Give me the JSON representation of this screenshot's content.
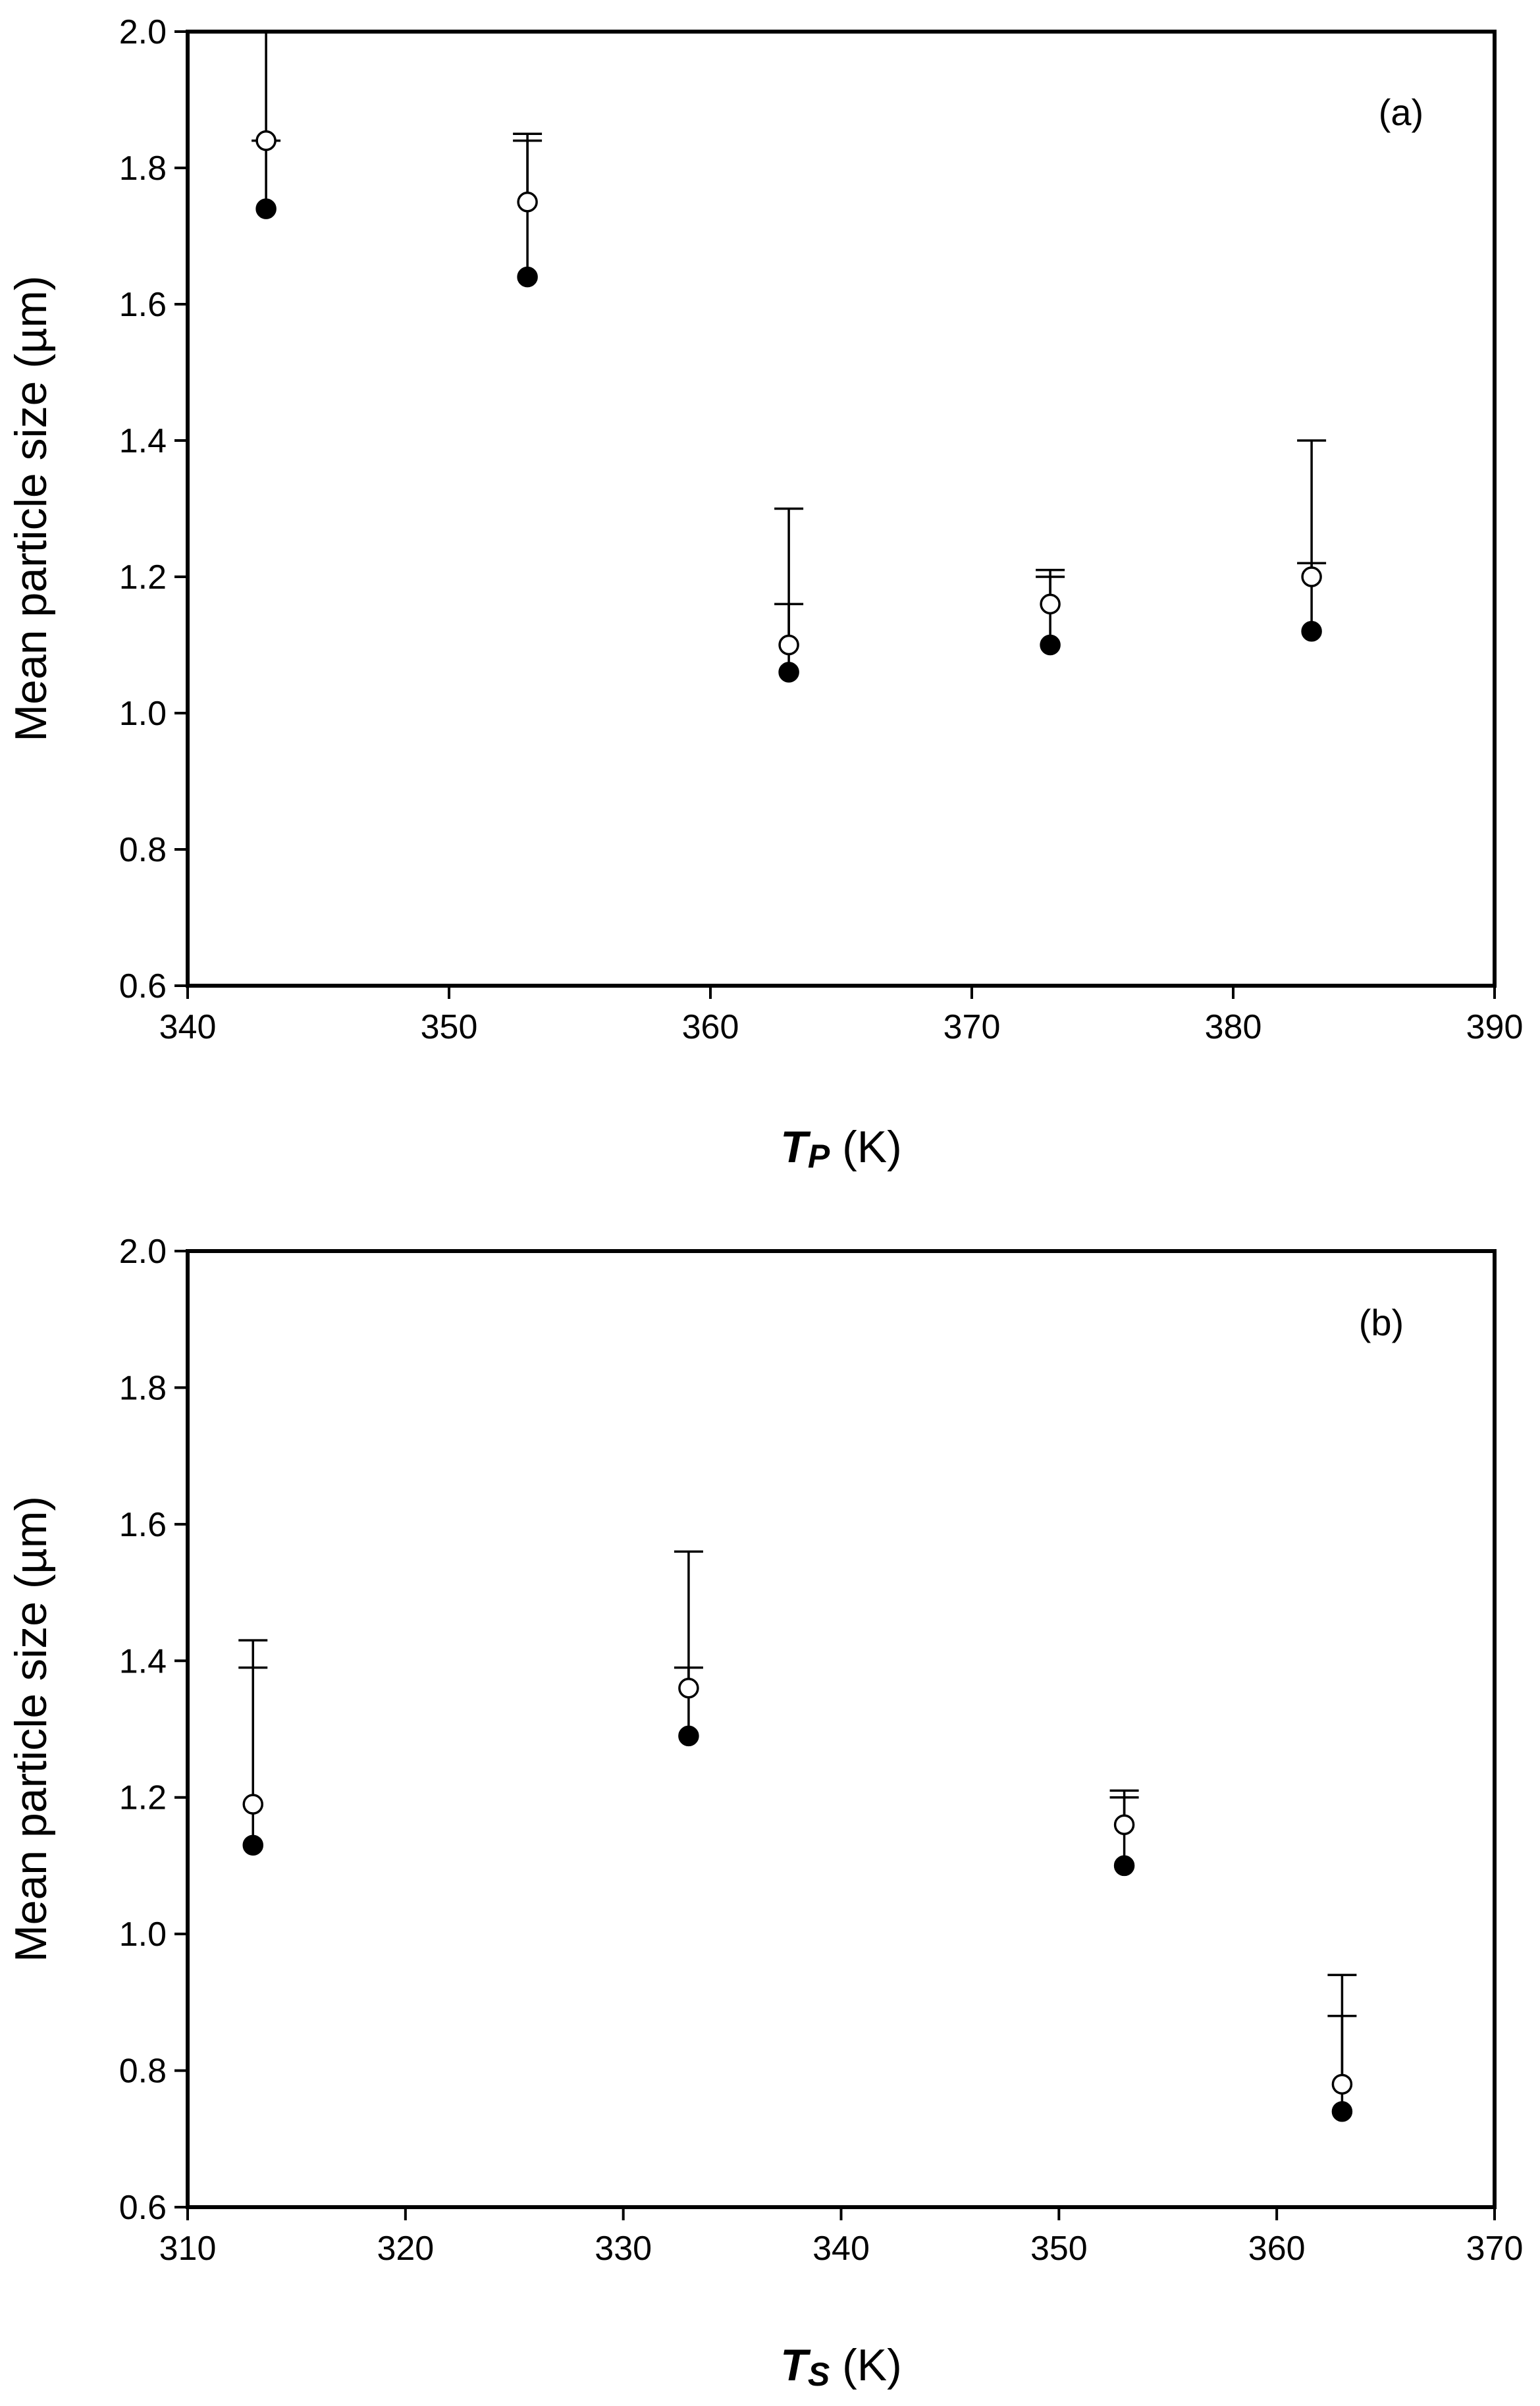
{
  "chart_data": [
    {
      "type": "scatter",
      "panel_label": "(a)",
      "ylabel": "Mean particle size (µm)",
      "xlabel": {
        "symbol_main": "T",
        "symbol_sub": "P",
        "unit": " (K)"
      },
      "xlim": [
        340,
        390
      ],
      "ylim": [
        0.6,
        2.0
      ],
      "xticks": [
        "340",
        "350",
        "360",
        "370",
        "380",
        "390"
      ],
      "yticks": [
        "0.6",
        "0.8",
        "1.0",
        "1.2",
        "1.4",
        "1.6",
        "1.8",
        "2.0"
      ],
      "grid": false,
      "series": [
        {
          "marker": "filled-circle",
          "x": [
            343,
            353,
            363,
            373,
            383
          ],
          "y": [
            1.74,
            1.64,
            1.06,
            1.1,
            1.12
          ],
          "error_upper": [
            1.84,
            1.85,
            1.16,
            1.21,
            1.22
          ]
        },
        {
          "marker": "open-circle",
          "x": [
            343,
            353,
            363,
            373,
            383
          ],
          "y": [
            1.84,
            1.75,
            1.1,
            1.16,
            1.2
          ],
          "error_upper": [
            2.0,
            1.84,
            1.3,
            1.2,
            1.4
          ]
        }
      ]
    },
    {
      "type": "scatter",
      "panel_label": "(b)",
      "ylabel": "Mean particle size (µm)",
      "xlabel": {
        "symbol_main": "T",
        "symbol_sub": "S",
        "unit": " (K)"
      },
      "xlim": [
        310,
        370
      ],
      "ylim": [
        0.6,
        2.0
      ],
      "xticks": [
        "310",
        "320",
        "330",
        "340",
        "350",
        "360",
        "370"
      ],
      "yticks": [
        "0.6",
        "0.8",
        "1.0",
        "1.2",
        "1.4",
        "1.6",
        "1.8",
        "2.0"
      ],
      "grid": false,
      "series": [
        {
          "marker": "filled-circle",
          "x": [
            313,
            333,
            353,
            363
          ],
          "y": [
            1.13,
            1.29,
            1.1,
            0.74
          ],
          "error_upper": [
            1.39,
            1.39,
            1.2,
            0.88
          ]
        },
        {
          "marker": "open-circle",
          "x": [
            313,
            333,
            353,
            363
          ],
          "y": [
            1.19,
            1.36,
            1.16,
            0.78
          ],
          "error_upper": [
            1.43,
            1.56,
            1.21,
            0.94
          ]
        }
      ]
    }
  ]
}
